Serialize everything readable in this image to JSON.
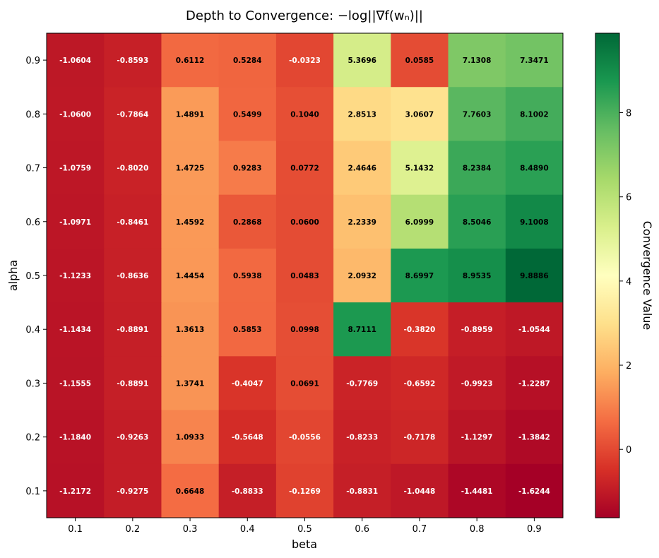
{
  "chart_data": {
    "type": "heatmap",
    "title": "Depth to Convergence: −log||∇f(wₙ)||",
    "xlabel": "beta",
    "ylabel": "alpha",
    "colorbar_label": "Convergence Value",
    "colormap": "RdYlGn",
    "vmin": -1.6244,
    "vmax": 9.8886,
    "colorbar_ticks": [
      0,
      2,
      4,
      6,
      8
    ],
    "x_categories": [
      "0.1",
      "0.2",
      "0.3",
      "0.4",
      "0.5",
      "0.6",
      "0.7",
      "0.8",
      "0.9"
    ],
    "y_categories": [
      "0.9",
      "0.8",
      "0.7",
      "0.6",
      "0.5",
      "0.4",
      "0.3",
      "0.2",
      "0.1"
    ],
    "values": [
      [
        -1.0604,
        -0.8593,
        0.6112,
        0.5284,
        -0.0323,
        5.3696,
        0.0585,
        7.1308,
        7.3471
      ],
      [
        -1.06,
        -0.7864,
        1.4891,
        0.5499,
        0.104,
        2.8513,
        3.0607,
        7.7603,
        8.1002
      ],
      [
        -1.0759,
        -0.802,
        1.4725,
        0.9283,
        0.0772,
        2.4646,
        5.1432,
        8.2384,
        8.489
      ],
      [
        -1.0971,
        -0.8461,
        1.4592,
        0.2868,
        0.06,
        2.2339,
        6.0999,
        8.5046,
        9.1008
      ],
      [
        -1.1233,
        -0.8636,
        1.4454,
        0.5938,
        0.0483,
        2.0932,
        8.6997,
        8.9535,
        9.8886
      ],
      [
        -1.1434,
        -0.8891,
        1.3613,
        0.5853,
        0.0998,
        8.7111,
        -0.382,
        -0.8959,
        -1.0544
      ],
      [
        -1.1555,
        -0.8891,
        1.3741,
        -0.4047,
        0.0691,
        -0.7769,
        -0.6592,
        -0.9923,
        -1.2287
      ],
      [
        -1.184,
        -0.9263,
        1.0933,
        -0.5648,
        -0.0556,
        -0.8233,
        -0.7178,
        -1.1297,
        -1.3842
      ],
      [
        -1.2172,
        -0.9275,
        0.6648,
        -0.8833,
        -0.1269,
        -0.8831,
        -1.0448,
        -1.4481,
        -1.6244
      ]
    ]
  }
}
